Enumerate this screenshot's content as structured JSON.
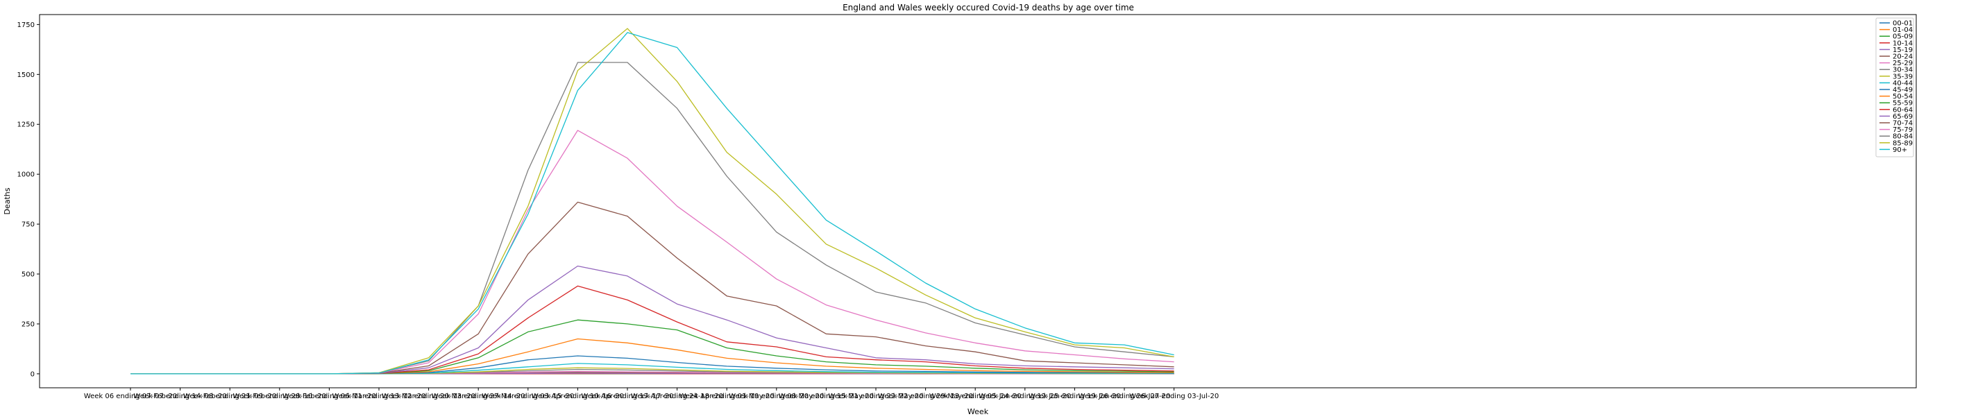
{
  "chart_data": {
    "type": "line",
    "title": "England and Wales weekly occured Covid-19 deaths by age over time",
    "xlabel": "Week",
    "ylabel": "Deaths",
    "ylim": [
      -70,
      1800
    ],
    "yticks": [
      0,
      250,
      500,
      750,
      1000,
      1250,
      1500,
      1750
    ],
    "grid": false,
    "legend_position": "top-right",
    "categories": [
      "Week 06 ending 07-Feb-20",
      "Week 07 ending 14-Feb-20",
      "Week 08 ending 21-Feb-20",
      "Week 09 ending 28-Feb-20",
      "Week 10 ending 06-Mar-20",
      "Week 11 ending 13-Mar-20",
      "Week 12 ending 20-Mar-20",
      "Week 13 ending 27-Mar-20",
      "Week 14 ending 03-Apr-20",
      "Week 15 ending 10-Apr-20",
      "Week 16 ending 17-Apr-20",
      "Week 17 ending 24-Apr-20",
      "Week 18 ending 01-May-20",
      "Week 19 ending 08-May-20",
      "Week 20 ending 15-May-20",
      "Week 21 ending 22-May-20",
      "Week 22 ending 29-May-20",
      "Week 23 ending 05-Jun-20",
      "Week 24 ending 12-Jun-20",
      "Week 25 ending 19-Jun-20",
      "Week 26 ending 26-Jun-20",
      "Week 27 ending 03-Jul-20"
    ],
    "series": [
      {
        "name": "00-01",
        "color": "#1f77b4",
        "values": [
          0,
          0,
          0,
          0,
          0,
          0,
          0,
          0,
          0,
          1,
          0,
          0,
          0,
          0,
          0,
          0,
          0,
          0,
          0,
          0,
          0,
          0
        ]
      },
      {
        "name": "01-04",
        "color": "#ff7f0e",
        "values": [
          0,
          0,
          0,
          0,
          0,
          0,
          0,
          0,
          0,
          0,
          0,
          1,
          0,
          0,
          0,
          0,
          0,
          0,
          0,
          0,
          0,
          0
        ]
      },
      {
        "name": "05-09",
        "color": "#2ca02c",
        "values": [
          0,
          0,
          0,
          0,
          0,
          0,
          0,
          0,
          1,
          0,
          0,
          0,
          0,
          0,
          0,
          0,
          0,
          0,
          0,
          0,
          0,
          0
        ]
      },
      {
        "name": "10-14",
        "color": "#d62728",
        "values": [
          0,
          0,
          0,
          0,
          0,
          0,
          0,
          0,
          0,
          1,
          1,
          0,
          0,
          0,
          0,
          0,
          0,
          0,
          0,
          0,
          0,
          0
        ]
      },
      {
        "name": "15-19",
        "color": "#9467bd",
        "values": [
          0,
          0,
          0,
          0,
          0,
          0,
          0,
          1,
          2,
          3,
          2,
          2,
          1,
          1,
          1,
          0,
          1,
          0,
          0,
          0,
          0,
          0
        ]
      },
      {
        "name": "20-24",
        "color": "#8c564b",
        "values": [
          0,
          0,
          0,
          0,
          0,
          0,
          1,
          3,
          7,
          8,
          6,
          5,
          3,
          2,
          2,
          1,
          1,
          1,
          1,
          0,
          0,
          0
        ]
      },
      {
        "name": "25-29",
        "color": "#e377c2",
        "values": [
          0,
          0,
          0,
          0,
          0,
          0,
          1,
          4,
          9,
          12,
          10,
          8,
          5,
          4,
          3,
          2,
          2,
          1,
          1,
          1,
          1,
          1
        ]
      },
      {
        "name": "30-34",
        "color": "#7f7f7f",
        "values": [
          0,
          0,
          0,
          0,
          0,
          0,
          2,
          7,
          15,
          22,
          19,
          14,
          9,
          7,
          5,
          4,
          3,
          2,
          2,
          1,
          1,
          1
        ]
      },
      {
        "name": "35-39",
        "color": "#bcbd22",
        "values": [
          0,
          0,
          0,
          0,
          0,
          0,
          2,
          10,
          22,
          30,
          27,
          20,
          13,
          10,
          7,
          5,
          4,
          3,
          3,
          2,
          2,
          2
        ]
      },
      {
        "name": "40-44",
        "color": "#17becf",
        "values": [
          0,
          0,
          0,
          0,
          0,
          0,
          3,
          18,
          35,
          52,
          45,
          33,
          22,
          16,
          11,
          8,
          7,
          5,
          4,
          3,
          3,
          2
        ]
      },
      {
        "name": "45-49",
        "color": "#1f77b4",
        "values": [
          0,
          0,
          0,
          0,
          0,
          1,
          6,
          30,
          70,
          90,
          78,
          57,
          38,
          28,
          20,
          14,
          12,
          9,
          7,
          6,
          5,
          4
        ]
      },
      {
        "name": "50-54",
        "color": "#ff7f0e",
        "values": [
          0,
          0,
          0,
          0,
          0,
          1,
          10,
          50,
          110,
          175,
          155,
          120,
          78,
          55,
          38,
          28,
          22,
          16,
          12,
          10,
          8,
          6
        ]
      },
      {
        "name": "55-59",
        "color": "#2ca02c",
        "values": [
          0,
          0,
          0,
          0,
          0,
          1,
          15,
          80,
          210,
          270,
          250,
          220,
          130,
          90,
          60,
          45,
          38,
          28,
          20,
          16,
          13,
          10
        ]
      },
      {
        "name": "60-64",
        "color": "#d62728",
        "values": [
          0,
          0,
          0,
          0,
          0,
          2,
          20,
          100,
          280,
          440,
          370,
          260,
          160,
          135,
          85,
          70,
          60,
          40,
          28,
          22,
          18,
          14
        ]
      },
      {
        "name": "65-69",
        "color": "#9467bd",
        "values": [
          0,
          0,
          0,
          0,
          0,
          2,
          30,
          130,
          370,
          540,
          490,
          350,
          270,
          180,
          130,
          80,
          70,
          50,
          40,
          35,
          30,
          25
        ]
      },
      {
        "name": "70-74",
        "color": "#8c564b",
        "values": [
          0,
          0,
          0,
          0,
          0,
          3,
          40,
          200,
          600,
          860,
          790,
          580,
          390,
          340,
          200,
          185,
          140,
          110,
          65,
          55,
          45,
          35
        ]
      },
      {
        "name": "75-79",
        "color": "#e377c2",
        "values": [
          0,
          0,
          0,
          0,
          0,
          4,
          55,
          300,
          820,
          1220,
          1080,
          840,
          660,
          475,
          345,
          270,
          205,
          155,
          115,
          95,
          75,
          60
        ]
      },
      {
        "name": "80-84",
        "color": "#7f7f7f",
        "values": [
          0,
          0,
          0,
          0,
          0,
          5,
          65,
          340,
          1020,
          1560,
          1560,
          1330,
          990,
          710,
          545,
          410,
          355,
          255,
          195,
          135,
          110,
          85
        ]
      },
      {
        "name": "85-89",
        "color": "#bcbd22",
        "values": [
          0,
          0,
          0,
          0,
          0,
          5,
          80,
          340,
          840,
          1520,
          1730,
          1465,
          1110,
          900,
          650,
          530,
          395,
          280,
          210,
          145,
          130,
          85
        ]
      },
      {
        "name": "90+",
        "color": "#17becf",
        "values": [
          0,
          0,
          0,
          0,
          0,
          4,
          70,
          325,
          800,
          1420,
          1710,
          1635,
          1330,
          1050,
          770,
          615,
          455,
          325,
          230,
          155,
          145,
          95
        ]
      }
    ]
  }
}
